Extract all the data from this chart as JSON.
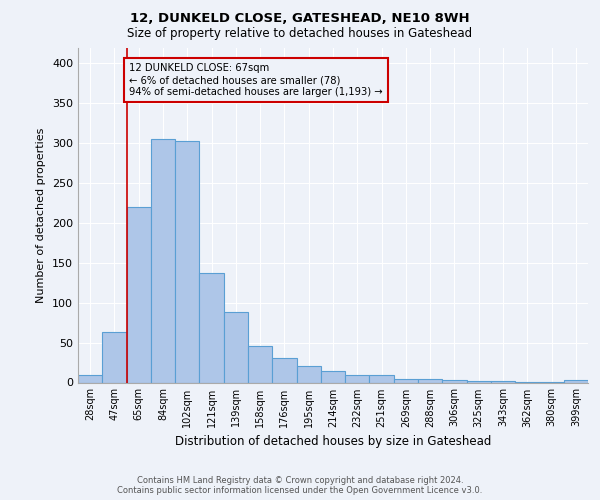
{
  "title1": "12, DUNKELD CLOSE, GATESHEAD, NE10 8WH",
  "title2": "Size of property relative to detached houses in Gateshead",
  "xlabel": "Distribution of detached houses by size in Gateshead",
  "ylabel": "Number of detached properties",
  "categories": [
    "28sqm",
    "47sqm",
    "65sqm",
    "84sqm",
    "102sqm",
    "121sqm",
    "139sqm",
    "158sqm",
    "176sqm",
    "195sqm",
    "214sqm",
    "232sqm",
    "251sqm",
    "269sqm",
    "288sqm",
    "306sqm",
    "325sqm",
    "343sqm",
    "362sqm",
    "380sqm",
    "399sqm"
  ],
  "values": [
    9,
    63,
    220,
    305,
    303,
    137,
    88,
    46,
    31,
    21,
    14,
    10,
    10,
    5,
    4,
    3,
    2,
    2,
    1,
    1,
    3
  ],
  "bar_color": "#aec6e8",
  "bar_edge_color": "#5a9fd4",
  "vline_x": 1.5,
  "vline_color": "#cc0000",
  "annotation_text": "12 DUNKELD CLOSE: 67sqm\n← 6% of detached houses are smaller (78)\n94% of semi-detached houses are larger (1,193) →",
  "annotation_box_color": "#cc0000",
  "footer1": "Contains HM Land Registry data © Crown copyright and database right 2024.",
  "footer2": "Contains public sector information licensed under the Open Government Licence v3.0.",
  "ylim": [
    0,
    420
  ],
  "yticks": [
    0,
    50,
    100,
    150,
    200,
    250,
    300,
    350,
    400
  ],
  "bg_color": "#eef2f9",
  "grid_color": "#ffffff"
}
